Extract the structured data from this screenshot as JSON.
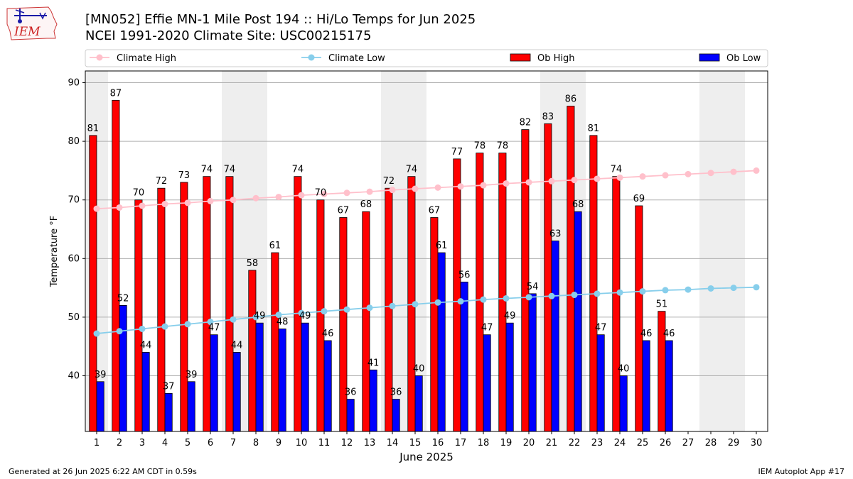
{
  "header": {
    "title_line1": "[MN052] Effie MN-1 Mile Post 194 :: Hi/Lo Temps for Jun 2025",
    "title_line2": "NCEI 1991-2020 Climate Site: USC00215175",
    "logo_text": "IEM"
  },
  "footer": {
    "left": "Generated at 26 Jun 2025 6:22 AM CDT in 0.59s",
    "right": "IEM Autoplot App #17"
  },
  "colors": {
    "ob_high": "#ff0000",
    "ob_low": "#0000ff",
    "climate_high": "#ffc0cb",
    "climate_low": "#87ceeb",
    "weekend_shade": "#eeeeee",
    "grid": "#b0b0b0"
  },
  "chart_data": {
    "type": "bar",
    "xlabel": "June 2025",
    "ylabel": "Temperature °F",
    "ylim": [
      30.5,
      92
    ],
    "yticks": [
      40,
      50,
      60,
      70,
      80,
      90
    ],
    "grid": "horizontal",
    "legend_placement": "top",
    "legend": [
      "Climate High",
      "Climate Low",
      "Ob High",
      "Ob Low"
    ],
    "days": [
      1,
      2,
      3,
      4,
      5,
      6,
      7,
      8,
      9,
      10,
      11,
      12,
      13,
      14,
      15,
      16,
      17,
      18,
      19,
      20,
      21,
      22,
      23,
      24,
      25,
      26,
      27,
      28,
      29,
      30
    ],
    "shaded_days": [
      1,
      7,
      8,
      14,
      15,
      21,
      22,
      28,
      29
    ],
    "series": [
      {
        "name": "Ob High",
        "kind": "bar",
        "values": [
          81,
          87,
          70,
          72,
          73,
          74,
          74,
          58,
          61,
          74,
          70,
          67,
          68,
          72,
          74,
          67,
          77,
          78,
          78,
          82,
          83,
          86,
          81,
          74,
          69,
          51,
          null,
          null,
          null,
          null
        ]
      },
      {
        "name": "Ob Low",
        "kind": "bar",
        "values": [
          39,
          52,
          44,
          37,
          39,
          47,
          44,
          49,
          48,
          49,
          46,
          36,
          41,
          36,
          40,
          61,
          56,
          47,
          49,
          54,
          63,
          68,
          47,
          40,
          46,
          46,
          null,
          null,
          null,
          null
        ]
      },
      {
        "name": "Climate High",
        "kind": "line",
        "values": [
          68.5,
          68.7,
          69.0,
          69.3,
          69.5,
          69.8,
          70.0,
          70.3,
          70.5,
          70.8,
          71.0,
          71.2,
          71.4,
          71.7,
          71.9,
          72.1,
          72.3,
          72.5,
          72.8,
          73.0,
          73.2,
          73.4,
          73.6,
          73.8,
          74.0,
          74.2,
          74.4,
          74.6,
          74.8,
          75.0
        ]
      },
      {
        "name": "Climate Low",
        "kind": "line",
        "values": [
          47.2,
          47.6,
          48.0,
          48.4,
          48.8,
          49.2,
          49.6,
          50.0,
          50.4,
          50.7,
          51.0,
          51.3,
          51.6,
          51.9,
          52.2,
          52.5,
          52.7,
          53.0,
          53.2,
          53.4,
          53.6,
          53.8,
          54.0,
          54.2,
          54.4,
          54.6,
          54.7,
          54.9,
          55.0,
          55.1
        ]
      }
    ]
  }
}
